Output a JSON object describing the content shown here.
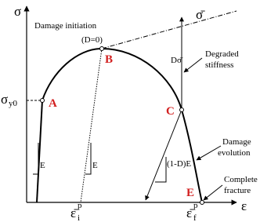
{
  "axes": {
    "y_label": "σ",
    "x_label": "ε"
  },
  "points": {
    "A": "A",
    "B": "B",
    "C": "C",
    "E": "E"
  },
  "annotations": {
    "damage_initiation": "Damage initiation",
    "d0": "(D=0)",
    "sigma_bar": "σ̄",
    "d_sigma_bar": "Dσ̄",
    "degraded_stiffness": [
      "Degraded",
      "stiffness"
    ],
    "damage_evolution": [
      "Damage",
      "evolution"
    ],
    "complete_fracture": [
      "Complete",
      "fracture"
    ],
    "slope_e_1": "E",
    "slope_e_2": "E",
    "slope_degraded": "(1-D)E"
  },
  "yield": {
    "symbol": "σ",
    "subscript": "y0"
  },
  "eps_i": {
    "symbol": "ε̄",
    "subscript": "i",
    "superscript": "p"
  },
  "eps_f": {
    "symbol": "ε̄",
    "subscript": "f",
    "superscript": "p"
  }
}
